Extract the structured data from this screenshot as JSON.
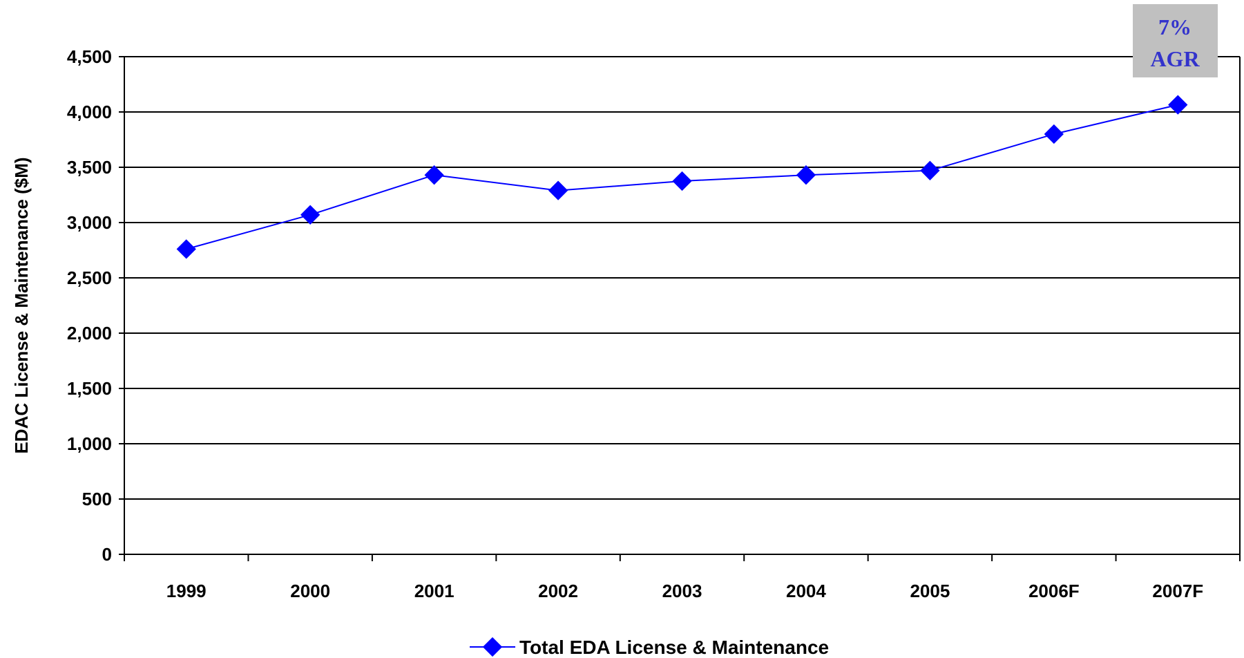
{
  "chart_data": {
    "type": "line",
    "categories": [
      "1999",
      "2000",
      "2001",
      "2002",
      "2003",
      "2004",
      "2005",
      "2006F",
      "2007F"
    ],
    "series": [
      {
        "name": "Total EDA License & Maintenance",
        "values": [
          2760,
          3070,
          3430,
          3290,
          3375,
          3430,
          3470,
          3800,
          4065
        ],
        "color": "#0000ff"
      }
    ],
    "title": "",
    "xlabel": "",
    "ylabel": "EDAC License & Maintenance ($M)",
    "ylim": [
      0,
      4500
    ],
    "yticks": [
      0,
      500,
      1000,
      1500,
      2000,
      2500,
      3000,
      3500,
      4000,
      4500
    ],
    "ytick_labels": [
      "0",
      "500",
      "1,000",
      "1,500",
      "2,000",
      "2,500",
      "3,000",
      "3,500",
      "4,000",
      "4,500"
    ],
    "grid": true,
    "legend_position": "bottom-center",
    "annotation": {
      "lines": [
        "7%",
        "AGR"
      ],
      "text_color": "#3333cc",
      "background": "#c0c0c0"
    }
  }
}
